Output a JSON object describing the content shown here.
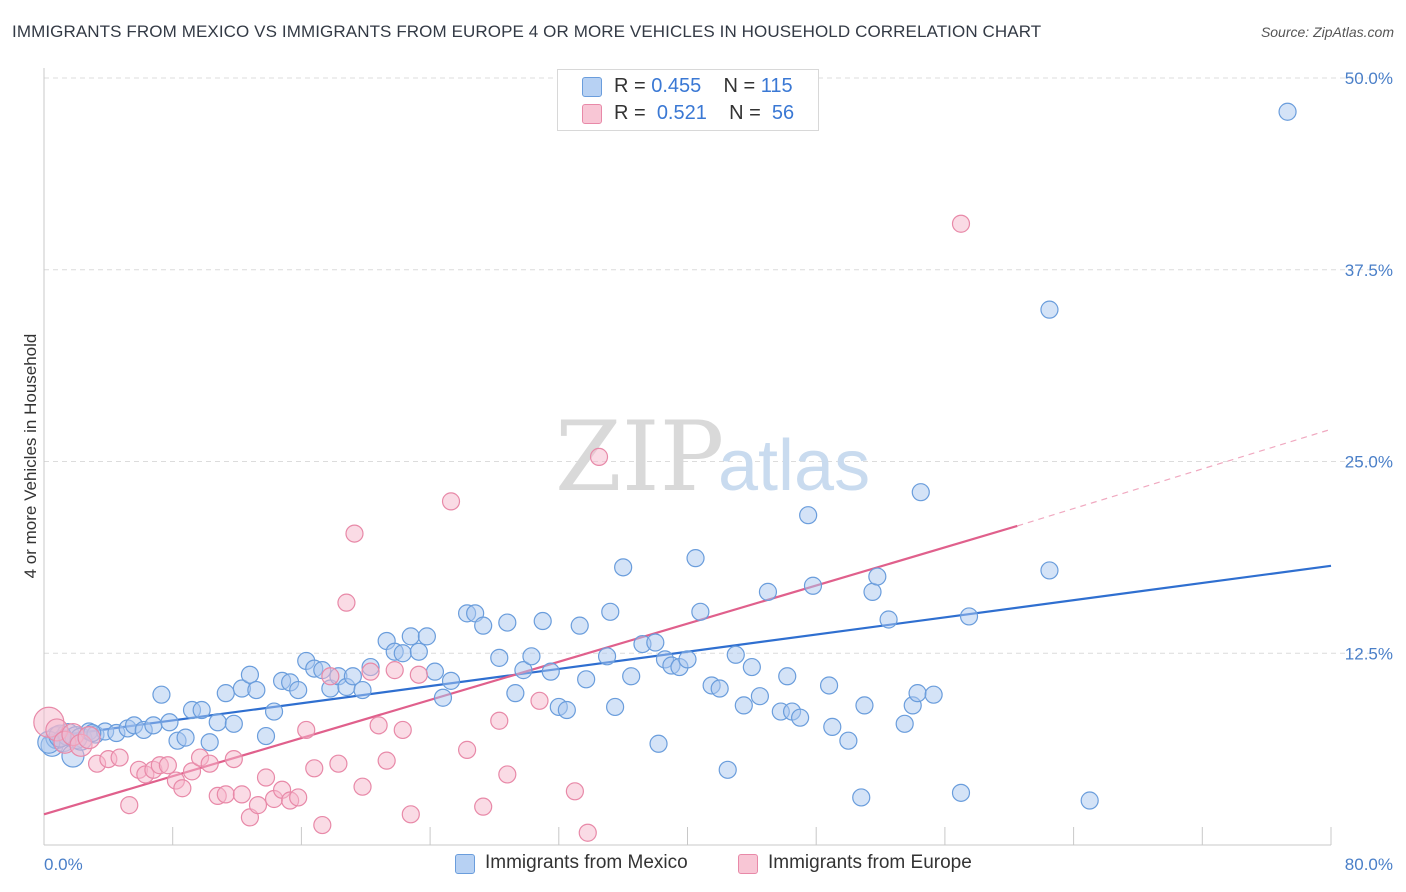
{
  "title": "IMMIGRANTS FROM MEXICO VS IMMIGRANTS FROM EUROPE 4 OR MORE VEHICLES IN HOUSEHOLD CORRELATION CHART",
  "source": "Source: ZipAtlas.com",
  "watermark": {
    "zip": "ZIP",
    "atlas": "atlas"
  },
  "colors": {
    "blue_fill": "#a9c8f0",
    "blue_stroke": "#6a9ddc",
    "blue_line": "#2f6fd0",
    "pink_fill": "#f6b8cb",
    "pink_stroke": "#e889a8",
    "pink_line": "#e0608c",
    "tick_text": "#4a7fc8",
    "grid": "#dedede"
  },
  "legend": {
    "rows": [
      {
        "r_label": "R = ",
        "r_value": "0.455",
        "n_label": "N = ",
        "n_value": "115"
      },
      {
        "r_label": "R = ",
        "r_value": "0.521",
        "n_label": "N = ",
        "n_value": "56"
      }
    ]
  },
  "bottom_legend": [
    "Immigrants from Mexico",
    "Immigrants from Europe"
  ],
  "chart_data": {
    "type": "scatter",
    "title": "IMMIGRANTS FROM MEXICO VS IMMIGRANTS FROM EUROPE 4 OR MORE VEHICLES IN HOUSEHOLD CORRELATION CHART",
    "xlabel": "",
    "ylabel": "4 or more Vehicles in Household",
    "xlim": [
      0,
      80
    ],
    "ylim": [
      0,
      50
    ],
    "x_tick_labels": [
      "0.0%",
      "80.0%"
    ],
    "y_ticks": [
      12.5,
      25.0,
      37.5,
      50.0
    ],
    "y_tick_labels": [
      "12.5%",
      "25.0%",
      "37.5%",
      "50.0%"
    ],
    "grid": true,
    "legend_position": "top-center",
    "series": [
      {
        "name": "Immigrants from Mexico",
        "color": "#a9c8f0",
        "trend": {
          "x": [
            0,
            80
          ],
          "y": [
            7.0,
            18.2
          ]
        },
        "points": [
          [
            0.5,
            6.5
          ],
          [
            0.8,
            7.0
          ],
          [
            1.2,
            6.8
          ],
          [
            1.5,
            7.2
          ],
          [
            1.8,
            5.8
          ],
          [
            2.0,
            7.0
          ],
          [
            2.3,
            6.9
          ],
          [
            2.8,
            7.4
          ],
          [
            3.2,
            7.2
          ],
          [
            3.8,
            7.4
          ],
          [
            4.5,
            7.3
          ],
          [
            5.2,
            7.6
          ],
          [
            5.6,
            7.8
          ],
          [
            6.2,
            7.5
          ],
          [
            6.8,
            7.8
          ],
          [
            7.3,
            9.8
          ],
          [
            7.8,
            8.0
          ],
          [
            8.3,
            6.8
          ],
          [
            8.8,
            7.0
          ],
          [
            9.2,
            8.8
          ],
          [
            9.8,
            8.8
          ],
          [
            10.3,
            6.7
          ],
          [
            10.8,
            8.0
          ],
          [
            11.3,
            9.9
          ],
          [
            11.8,
            7.9
          ],
          [
            12.3,
            10.2
          ],
          [
            12.8,
            11.1
          ],
          [
            13.2,
            10.1
          ],
          [
            13.8,
            7.1
          ],
          [
            14.3,
            8.7
          ],
          [
            14.8,
            10.7
          ],
          [
            15.3,
            10.6
          ],
          [
            15.8,
            10.1
          ],
          [
            16.3,
            12.0
          ],
          [
            16.8,
            11.5
          ],
          [
            17.3,
            11.4
          ],
          [
            17.8,
            10.2
          ],
          [
            18.3,
            11.0
          ],
          [
            18.8,
            10.3
          ],
          [
            19.2,
            11.0
          ],
          [
            19.8,
            10.1
          ],
          [
            20.3,
            11.6
          ],
          [
            21.3,
            13.3
          ],
          [
            21.8,
            12.6
          ],
          [
            22.3,
            12.5
          ],
          [
            22.8,
            13.6
          ],
          [
            23.3,
            12.6
          ],
          [
            23.8,
            13.6
          ],
          [
            24.3,
            11.3
          ],
          [
            24.8,
            9.6
          ],
          [
            25.3,
            10.7
          ],
          [
            26.3,
            15.1
          ],
          [
            26.8,
            15.1
          ],
          [
            27.3,
            14.3
          ],
          [
            28.3,
            12.2
          ],
          [
            28.8,
            14.5
          ],
          [
            29.3,
            9.9
          ],
          [
            29.8,
            11.4
          ],
          [
            30.3,
            12.3
          ],
          [
            31.0,
            14.6
          ],
          [
            31.5,
            11.3
          ],
          [
            32.0,
            9.0
          ],
          [
            32.5,
            8.8
          ],
          [
            33.3,
            14.3
          ],
          [
            33.7,
            10.8
          ],
          [
            35.0,
            12.3
          ],
          [
            35.2,
            15.2
          ],
          [
            35.5,
            9.0
          ],
          [
            36.0,
            18.1
          ],
          [
            36.5,
            11.0
          ],
          [
            37.2,
            13.1
          ],
          [
            38.0,
            13.2
          ],
          [
            38.2,
            6.6
          ],
          [
            38.6,
            12.1
          ],
          [
            39.0,
            11.7
          ],
          [
            39.5,
            11.6
          ],
          [
            40.0,
            12.1
          ],
          [
            40.5,
            18.7
          ],
          [
            40.8,
            15.2
          ],
          [
            41.5,
            10.4
          ],
          [
            42.0,
            10.2
          ],
          [
            42.5,
            4.9
          ],
          [
            43.0,
            12.4
          ],
          [
            43.5,
            9.1
          ],
          [
            44.0,
            11.6
          ],
          [
            44.5,
            9.7
          ],
          [
            45.0,
            16.5
          ],
          [
            45.8,
            8.7
          ],
          [
            46.2,
            11.0
          ],
          [
            46.5,
            8.7
          ],
          [
            47.0,
            8.3
          ],
          [
            47.5,
            21.5
          ],
          [
            47.8,
            16.9
          ],
          [
            48.8,
            10.4
          ],
          [
            49.0,
            7.7
          ],
          [
            50.0,
            6.8
          ],
          [
            50.8,
            3.1
          ],
          [
            51.0,
            9.1
          ],
          [
            51.5,
            16.5
          ],
          [
            51.8,
            17.5
          ],
          [
            52.5,
            14.7
          ],
          [
            53.5,
            7.9
          ],
          [
            54.0,
            9.1
          ],
          [
            54.3,
            9.9
          ],
          [
            54.5,
            23.0
          ],
          [
            55.3,
            9.8
          ],
          [
            57.0,
            3.4
          ],
          [
            57.5,
            14.9
          ],
          [
            62.5,
            34.9
          ],
          [
            62.5,
            17.9
          ],
          [
            65.0,
            2.9
          ],
          [
            77.3,
            47.8
          ],
          [
            0.3,
            6.7
          ],
          [
            1.0,
            7.1
          ],
          [
            3.0,
            7.3
          ]
        ]
      },
      {
        "name": "Immigrants from Europe",
        "color": "#f6b8cb",
        "trend": {
          "x": [
            0,
            60.5
          ],
          "y": [
            2.0,
            20.8
          ]
        },
        "trend_dashed": {
          "x": [
            60.5,
            80
          ],
          "y": [
            20.8,
            27.1
          ]
        },
        "points": [
          [
            0.3,
            8.0
          ],
          [
            0.8,
            7.5
          ],
          [
            1.3,
            6.7
          ],
          [
            1.8,
            7.2
          ],
          [
            2.3,
            6.5
          ],
          [
            2.8,
            7.0
          ],
          [
            3.3,
            5.3
          ],
          [
            4.0,
            5.6
          ],
          [
            4.7,
            5.7
          ],
          [
            5.3,
            2.6
          ],
          [
            5.9,
            4.9
          ],
          [
            6.3,
            4.6
          ],
          [
            6.8,
            4.9
          ],
          [
            7.2,
            5.2
          ],
          [
            7.7,
            5.2
          ],
          [
            8.2,
            4.2
          ],
          [
            8.6,
            3.7
          ],
          [
            9.2,
            4.8
          ],
          [
            9.7,
            5.7
          ],
          [
            10.3,
            5.3
          ],
          [
            10.8,
            3.2
          ],
          [
            11.3,
            3.3
          ],
          [
            11.8,
            5.6
          ],
          [
            12.3,
            3.3
          ],
          [
            12.8,
            1.8
          ],
          [
            13.3,
            2.6
          ],
          [
            13.8,
            4.4
          ],
          [
            14.3,
            3.0
          ],
          [
            14.8,
            3.6
          ],
          [
            15.3,
            2.9
          ],
          [
            15.8,
            3.1
          ],
          [
            16.3,
            7.5
          ],
          [
            16.8,
            5.0
          ],
          [
            17.3,
            1.3
          ],
          [
            17.8,
            11.0
          ],
          [
            18.3,
            5.3
          ],
          [
            18.8,
            15.8
          ],
          [
            19.3,
            20.3
          ],
          [
            19.8,
            3.8
          ],
          [
            20.3,
            11.3
          ],
          [
            20.8,
            7.8
          ],
          [
            21.3,
            5.5
          ],
          [
            21.8,
            11.4
          ],
          [
            22.3,
            7.5
          ],
          [
            22.8,
            2.0
          ],
          [
            23.3,
            11.1
          ],
          [
            25.3,
            22.4
          ],
          [
            26.3,
            6.2
          ],
          [
            27.3,
            2.5
          ],
          [
            28.3,
            8.1
          ],
          [
            28.8,
            4.6
          ],
          [
            30.8,
            9.4
          ],
          [
            33.0,
            3.5
          ],
          [
            33.8,
            0.8
          ],
          [
            34.5,
            25.3
          ],
          [
            57.0,
            40.5
          ]
        ]
      }
    ]
  }
}
